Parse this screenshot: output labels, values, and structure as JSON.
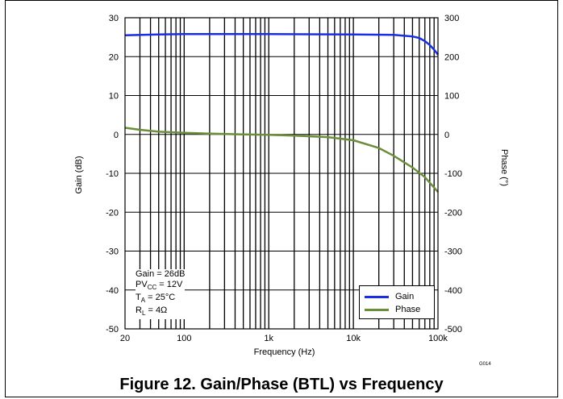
{
  "caption": "Figure 12. Gain/Phase (BTL) vs Frequency",
  "figure_code": "G014",
  "conditions": {
    "gain": "Gain = 26dB",
    "pvcc_main": "PV",
    "pvcc_sub": "CC",
    "pvcc_value": " = 12V",
    "ta_main": "T",
    "ta_sub": "A",
    "ta_value": " = 25°C",
    "rl_main": "R",
    "rl_sub": "L",
    "rl_value": " = 4Ω"
  },
  "colors": {
    "gain": "#1a2ee6",
    "phase": "#6b8e3a",
    "grid": "#000000"
  },
  "chart_data": {
    "type": "line",
    "title": "",
    "xlabel": "Frequency (Hz)",
    "ylabel": "Gain (dB)",
    "y2label": "Phase (°)",
    "xscale": "log",
    "xlim": [
      20,
      100000
    ],
    "ylim": [
      -50,
      30
    ],
    "y2lim": [
      -500,
      300
    ],
    "xticks": [
      20,
      100,
      1000,
      10000,
      100000
    ],
    "xticklabels": [
      "20",
      "100",
      "1k",
      "10k",
      "100k"
    ],
    "yticks": [
      30,
      20,
      10,
      0,
      -10,
      -20,
      -30,
      -40,
      -50
    ],
    "y2ticks": [
      300,
      200,
      100,
      0,
      -100,
      -200,
      -300,
      -400,
      -500
    ],
    "grid": true,
    "legend_position": "bottom-right",
    "series": [
      {
        "name": "Gain",
        "axis": "left",
        "x": [
          20,
          50,
          100,
          1000,
          10000,
          30000,
          50000,
          60000,
          70000,
          80000,
          90000,
          100000
        ],
        "values": [
          25.5,
          25.7,
          25.8,
          25.8,
          25.7,
          25.6,
          25.2,
          24.8,
          24.0,
          23.0,
          21.8,
          20.5
        ]
      },
      {
        "name": "Phase",
        "axis": "right",
        "x": [
          20,
          30,
          50,
          100,
          200,
          500,
          1000,
          2000,
          5000,
          10000,
          20000,
          30000,
          50000,
          70000,
          100000
        ],
        "values": [
          17,
          12,
          7,
          4,
          2,
          0,
          -1,
          -3,
          -7,
          -15,
          -35,
          -55,
          -85,
          -110,
          -148
        ]
      }
    ]
  }
}
